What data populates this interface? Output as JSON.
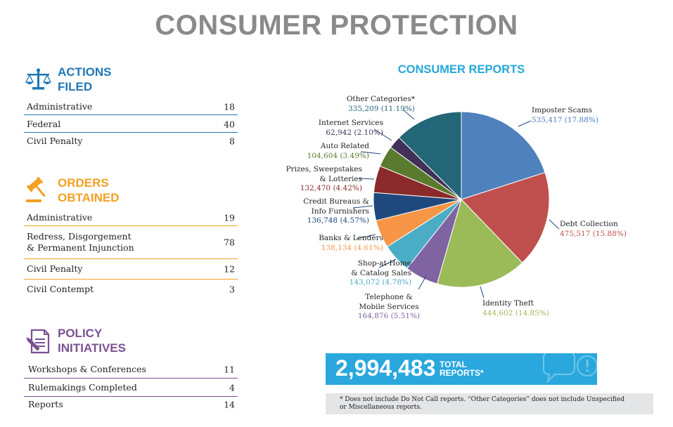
{
  "title": "CONSUMER PROTECTION",
  "actions_filed": {
    "heading_line1": "ACTIONS",
    "heading_line2": "FILED",
    "rows": [
      {
        "label": "Administrative",
        "value": "18"
      },
      {
        "label": "Federal",
        "value": "40"
      },
      {
        "label": "Civil Penalty",
        "value": "8"
      }
    ]
  },
  "orders_obtained": {
    "heading_line1": "ORDERS",
    "heading_line2": "OBTAINED",
    "rows": [
      {
        "label": "Administrative",
        "value": "19"
      },
      {
        "label_line1": "Redress, Disgorgement",
        "label_line2": "& Permanent Injunction",
        "value": "78"
      },
      {
        "label": "Civil Penalty",
        "value": "12"
      },
      {
        "label": "Civil Contempt",
        "value": "3"
      }
    ]
  },
  "policy_initiatives": {
    "heading_line1": "POLICY",
    "heading_line2": "INITIATIVES",
    "rows": [
      {
        "label": "Workshops & Conferences",
        "value": "11"
      },
      {
        "label": "Rulemakings Completed",
        "value": "4"
      },
      {
        "label": "Reports",
        "value": "14"
      }
    ]
  },
  "colors": {
    "actions": "#1f78b4",
    "orders": "#f3a023",
    "policy": "#7a5191",
    "title_gray": "#8a8a8a",
    "reports_blue": "#26a8d8"
  },
  "chart_data": {
    "type": "pie",
    "title": "CONSUMER REPORTS",
    "start": "12 o'clock",
    "direction": "clockwise",
    "slices": [
      {
        "name_lines": [
          "Imposter Scams"
        ],
        "count": "535,417",
        "pct": "17.88%",
        "value": 17.88,
        "color": "#4f81bd",
        "label_color": "#4f81bd"
      },
      {
        "name_lines": [
          "Debt Collection"
        ],
        "count": "475,517",
        "pct": "15.88%",
        "value": 15.88,
        "color": "#c0504d",
        "label_color": "#c0504d"
      },
      {
        "name_lines": [
          "Identity Theft"
        ],
        "count": "444,602",
        "pct": "14.85%",
        "value": 14.85,
        "color": "#9bbb59",
        "label_color": "#9bbb59"
      },
      {
        "name_lines": [
          "Telephone &",
          "Mobile Services"
        ],
        "count": "164,876",
        "pct": "5.51%",
        "value": 5.51,
        "color": "#8064a2",
        "label_color": "#8064a2"
      },
      {
        "name_lines": [
          "Shop-at-Home",
          "& Catalog Sales"
        ],
        "count": "143,072",
        "pct": "4.78%",
        "value": 4.78,
        "color": "#4bacc6",
        "label_color": "#4bacc6"
      },
      {
        "name_lines": [
          "Banks & Lenders"
        ],
        "count": "138,134",
        "pct": "4.61%",
        "value": 4.61,
        "color": "#f79646",
        "label_color": "#f79646"
      },
      {
        "name_lines": [
          "Credit Bureaus &",
          "Info Furnishers"
        ],
        "count": "136,748",
        "pct": "4.57%",
        "value": 4.57,
        "color": "#1f497d",
        "label_color": "#1f497d"
      },
      {
        "name_lines": [
          "Prizes, Sweepstakes",
          "& Lotteries"
        ],
        "count": "132,470",
        "pct": "4.42%",
        "value": 4.42,
        "color": "#8b2a2a",
        "label_color": "#8b2a2a"
      },
      {
        "name_lines": [
          "Auto Related"
        ],
        "count": "104,604",
        "pct": "3.49%",
        "value": 3.49,
        "color": "#5a7a2e",
        "label_color": "#5a7a2e"
      },
      {
        "name_lines": [
          "Internet Services"
        ],
        "count": "62,942",
        "pct": "2.10%",
        "value": 2.1,
        "color": "#3f3158",
        "label_color": "#3f3158"
      },
      {
        "name_lines": [
          "Other Categories*"
        ],
        "count": "335,209",
        "pct": "11.19%",
        "value": 11.19,
        "color": "#236677",
        "label_color": "#236677"
      }
    ]
  },
  "total_banner": {
    "number": "2,994,483",
    "label_line1": "TOTAL",
    "label_line2": "REPORTS*"
  },
  "footnote": {
    "line1": "* Does not include Do Not Call reports. “Other Categories” does not include Unspecified",
    "line2": "or Miscellaneous reports."
  }
}
